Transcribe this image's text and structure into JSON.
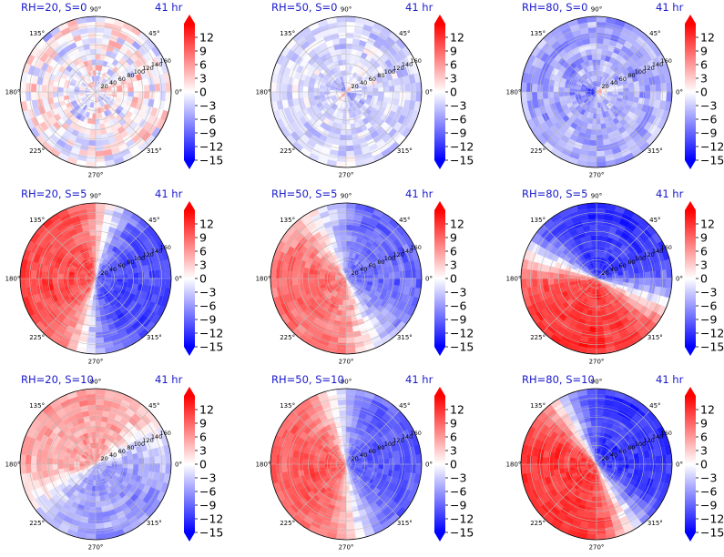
{
  "colors": {
    "negative": "#0000ff",
    "zero": "#ffffff",
    "positive": "#ff0000",
    "grid": "#bbbbbb"
  },
  "chart_data": {
    "type": "heatmap",
    "projection": "polar",
    "colormap": "bwr",
    "grid": true,
    "colorbar": {
      "ticks": [
        "12",
        "9",
        "6",
        "3",
        "0",
        "−3",
        "−6",
        "−9",
        "−12",
        "−15"
      ],
      "range": [
        -15,
        15
      ],
      "extend": "both"
    },
    "angle_ticks": [
      "90°",
      "45°",
      "0°",
      "315°",
      "270°",
      "225°",
      "180°",
      "135°"
    ],
    "radius_ticks": [
      "20",
      "40",
      "60",
      "80",
      "100",
      "120",
      "140",
      "160"
    ],
    "radius_range": [
      0,
      160
    ],
    "panels": [
      {
        "title": "RH=20, S=0",
        "time": "41 hr"
      },
      {
        "title": "RH=50, S=0",
        "time": "41 hr"
      },
      {
        "title": "RH=80, S=0",
        "time": "41 hr"
      },
      {
        "title": "RH=20, S=5",
        "time": "41 hr"
      },
      {
        "title": "RH=50, S=5",
        "time": "41 hr"
      },
      {
        "title": "RH=80, S=5",
        "time": "41 hr"
      },
      {
        "title": "RH=20, S=10",
        "time": "41 hr"
      },
      {
        "title": "RH=50, S=10",
        "time": "41 hr"
      },
      {
        "title": "RH=80, S=10",
        "time": "41 hr"
      }
    ]
  }
}
